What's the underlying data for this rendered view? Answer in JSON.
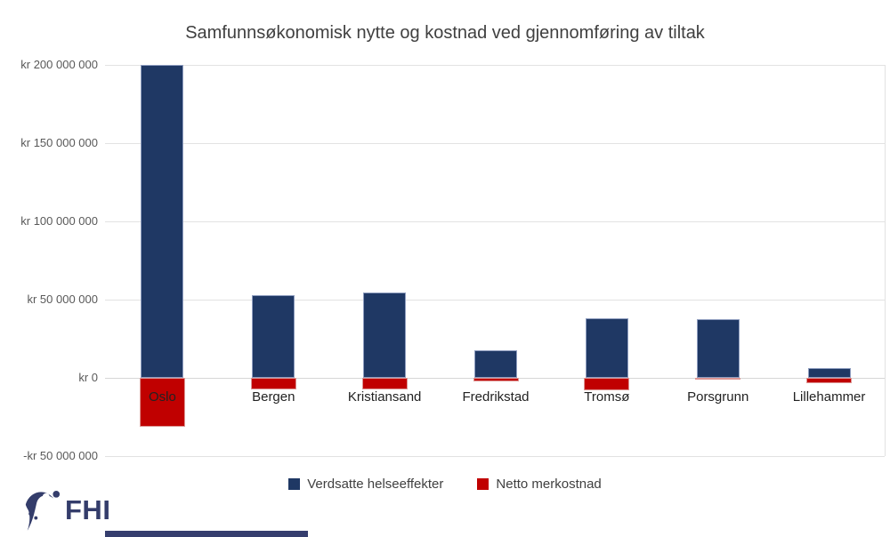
{
  "title": "Samfunnsøkonomisk nytte og kostnad ved gjennomføring av tiltak",
  "chart_data": {
    "type": "bar",
    "title": "Samfunnsøkonomisk nytte og kostnad ved gjennomføring av tiltak",
    "categories": [
      "Oslo",
      "Bergen",
      "Kristiansand",
      "Fredrikstad",
      "Tromsø",
      "Porsgrunn",
      "Lillehammer"
    ],
    "series": [
      {
        "name": "Verdsatte helseeffekter",
        "color": "#1F3864",
        "border_color": "#8E9DBF",
        "values": [
          200000000,
          53000000,
          54500000,
          17500000,
          38000000,
          37500000,
          6500000
        ]
      },
      {
        "name": "Netto merkostnad",
        "color": "#C00000",
        "border_color": "#DC9694",
        "values": [
          -31000000,
          -7500000,
          -7500000,
          -2500000,
          -8000000,
          -1000000,
          -3500000
        ]
      }
    ],
    "y_ticks": [
      {
        "label": "kr 200 000 000",
        "value": 200000000
      },
      {
        "label": "kr 150 000 000",
        "value": 150000000
      },
      {
        "label": "kr 100 000 000",
        "value": 100000000
      },
      {
        "label": "kr 50 000 000",
        "value": 50000000
      },
      {
        "label": "kr 0",
        "value": 0
      },
      {
        "label": "-kr 50 000 000",
        "value": -50000000
      }
    ],
    "ylim": [
      -50000000,
      200000000
    ],
    "xlabel": "",
    "ylabel": "",
    "currency": "kr",
    "grid": true,
    "legend_position": "bottom"
  },
  "footer": {
    "logo_text": "FHI",
    "logo_color": "#343d6b"
  }
}
